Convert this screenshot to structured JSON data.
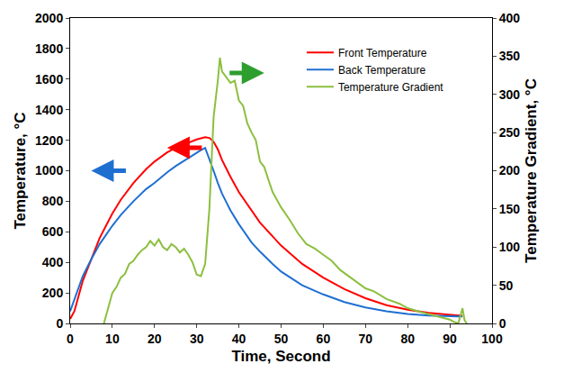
{
  "chart_data": {
    "type": "line",
    "x_label": "Time, Second",
    "y_label": "Temperature, °C",
    "y2_label": "Temperature Gradient, °C",
    "xlim": [
      0,
      100
    ],
    "xticks": [
      0,
      10,
      20,
      30,
      40,
      50,
      60,
      70,
      80,
      90,
      100
    ],
    "ylim": [
      0,
      2000
    ],
    "yticks": [
      0,
      200,
      400,
      600,
      800,
      1000,
      1200,
      1400,
      1600,
      1800,
      2000
    ],
    "y2lim": [
      0,
      400
    ],
    "y2ticks": [
      0,
      50,
      100,
      150,
      200,
      250,
      300,
      350,
      400
    ],
    "grid": false,
    "legend": "upper right",
    "series": [
      {
        "name": "Front Temperature",
        "color": "#ff0000",
        "axis": "y",
        "x": [
          0,
          1,
          2,
          3,
          5,
          7,
          10,
          12,
          15,
          18,
          20,
          23,
          25,
          28,
          30,
          32,
          33,
          34,
          35,
          36,
          38,
          40,
          43,
          45,
          48,
          50,
          55,
          60,
          65,
          70,
          75,
          80,
          85,
          90,
          93
        ],
        "values": [
          30,
          80,
          180,
          280,
          420,
          560,
          720,
          810,
          920,
          1010,
          1060,
          1120,
          1150,
          1185,
          1205,
          1220,
          1215,
          1190,
          1140,
          1070,
          960,
          860,
          740,
          660,
          570,
          510,
          390,
          300,
          225,
          165,
          120,
          90,
          70,
          55,
          50
        ]
      },
      {
        "name": "Back Temperature",
        "color": "#1f6fd1",
        "axis": "y",
        "x": [
          0,
          1,
          2,
          3,
          5,
          7,
          10,
          12,
          15,
          18,
          20,
          23,
          25,
          28,
          30,
          31,
          32,
          33,
          34,
          35,
          36,
          38,
          40,
          43,
          45,
          48,
          50,
          55,
          60,
          65,
          70,
          75,
          80,
          85,
          90,
          93
        ],
        "values": [
          80,
          160,
          240,
          310,
          420,
          520,
          640,
          710,
          800,
          880,
          920,
          990,
          1030,
          1085,
          1120,
          1135,
          1150,
          1080,
          1000,
          920,
          850,
          740,
          650,
          530,
          470,
          390,
          340,
          250,
          190,
          140,
          105,
          80,
          62,
          52,
          45,
          45
        ]
      },
      {
        "name": "Temperature Gradient",
        "color": "#8cbf3f",
        "axis": "y2",
        "x": [
          8,
          9,
          10,
          11,
          12,
          13,
          14,
          15,
          16,
          17,
          18,
          19,
          20,
          21,
          22,
          23,
          24,
          25,
          26,
          27,
          28,
          29,
          30,
          31,
          32,
          33,
          34,
          35,
          35.5,
          36,
          37,
          38,
          39,
          40,
          41,
          42,
          43,
          44,
          45,
          46,
          47,
          48,
          49,
          50,
          52,
          54,
          56,
          58,
          60,
          62,
          64,
          66,
          68,
          70,
          72,
          75,
          78,
          80,
          83,
          85,
          88,
          90,
          91,
          92,
          93,
          93.5,
          94
        ],
        "values": [
          0,
          20,
          40,
          48,
          60,
          65,
          78,
          82,
          90,
          96,
          100,
          108,
          102,
          110,
          100,
          96,
          104,
          100,
          93,
          98,
          90,
          80,
          64,
          62,
          78,
          150,
          270,
          318,
          348,
          330,
          322,
          315,
          318,
          292,
          285,
          262,
          250,
          240,
          212,
          205,
          188,
          172,
          162,
          152,
          136,
          118,
          104,
          98,
          90,
          82,
          70,
          62,
          55,
          46,
          42,
          32,
          26,
          20,
          15,
          12,
          8,
          5,
          2,
          0,
          20,
          4,
          0
        ]
      }
    ]
  }
}
